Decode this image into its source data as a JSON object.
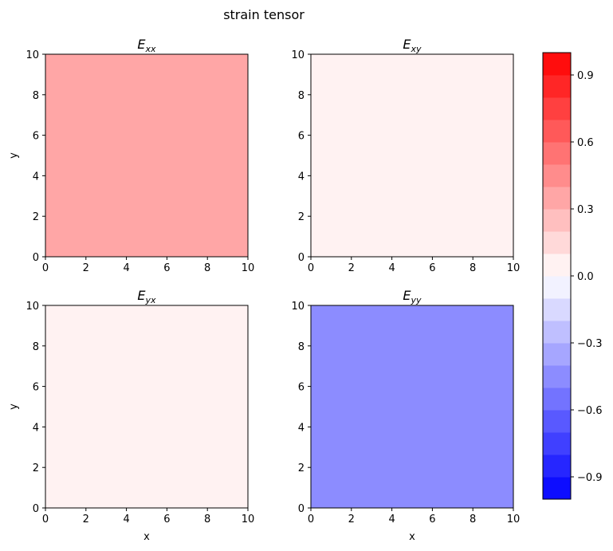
{
  "chart_data": {
    "type": "heatmap",
    "suptitle": "strain tensor",
    "panels": [
      {
        "key": "xx",
        "title_main": "E",
        "title_sub": "xx",
        "value": 0.35,
        "xlabel": "",
        "ylabel": "y",
        "xlim": [
          0,
          10
        ],
        "ylim": [
          0,
          10
        ],
        "xticks": [
          "0",
          "2",
          "4",
          "6",
          "8",
          "10"
        ],
        "yticks": [
          "0",
          "2",
          "4",
          "6",
          "8",
          "10"
        ]
      },
      {
        "key": "xy",
        "title_main": "E",
        "title_sub": "xy",
        "value": 0.0,
        "xlabel": "",
        "ylabel": "",
        "xlim": [
          0,
          10
        ],
        "ylim": [
          0,
          10
        ],
        "xticks": [
          "0",
          "2",
          "4",
          "6",
          "8",
          "10"
        ],
        "yticks": [
          "0",
          "2",
          "4",
          "6",
          "8",
          "10"
        ]
      },
      {
        "key": "yx",
        "title_main": "E",
        "title_sub": "yx",
        "value": 0.0,
        "xlabel": "x",
        "ylabel": "y",
        "xlim": [
          0,
          10
        ],
        "ylim": [
          0,
          10
        ],
        "xticks": [
          "0",
          "2",
          "4",
          "6",
          "8",
          "10"
        ],
        "yticks": [
          "0",
          "2",
          "4",
          "6",
          "8",
          "10"
        ]
      },
      {
        "key": "yy",
        "title_main": "E",
        "title_sub": "yy",
        "value": -0.45,
        "xlabel": "x",
        "ylabel": "",
        "xlim": [
          0,
          10
        ],
        "ylim": [
          0,
          10
        ],
        "xticks": [
          "0",
          "2",
          "4",
          "6",
          "8",
          "10"
        ],
        "yticks": [
          "0",
          "2",
          "4",
          "6",
          "8",
          "10"
        ]
      }
    ],
    "colorbar": {
      "colormap": "bwr",
      "range": [
        -1.0,
        1.0
      ],
      "levels": 20,
      "ticks": [
        {
          "value": -0.9,
          "label": "−0.9"
        },
        {
          "value": -0.6,
          "label": "−0.6"
        },
        {
          "value": -0.3,
          "label": "−0.3"
        },
        {
          "value": 0.0,
          "label": "0.0"
        },
        {
          "value": 0.3,
          "label": "0.3"
        },
        {
          "value": 0.6,
          "label": "0.6"
        },
        {
          "value": 0.9,
          "label": "0.9"
        }
      ]
    }
  }
}
